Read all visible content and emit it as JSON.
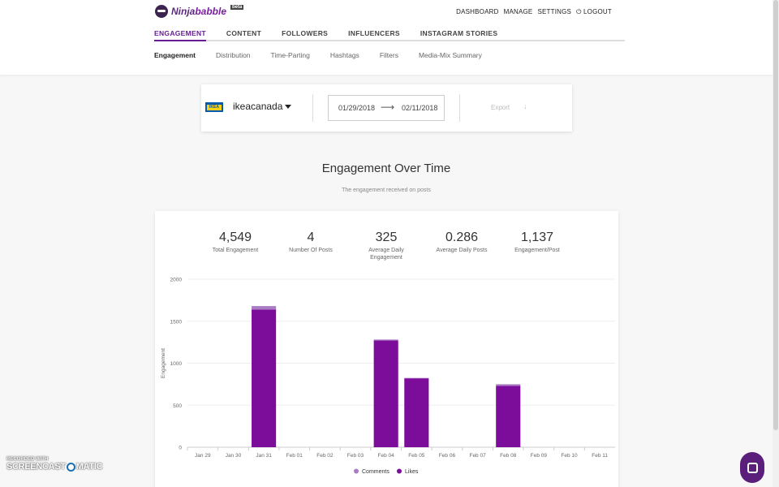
{
  "app": {
    "logo_text": "Ninja",
    "logo_text_bold": "babble",
    "logo_badge": "beta"
  },
  "topnav": [
    "DASHBOARD",
    "MANAGE",
    "SETTINGS",
    "⏻ LOGOUT"
  ],
  "main_tabs": [
    "ENGAGEMENT",
    "CONTENT",
    "FOLLOWERS",
    "INFLUENCERS",
    "INSTAGRAM STORIES"
  ],
  "sub_tabs": [
    "Engagement",
    "Distribution",
    "Time-Parting",
    "Hashtags",
    "Filters",
    "Media-Mix Summary"
  ],
  "filter": {
    "brand_logo": "IKEA",
    "account": "ikeacanada",
    "date_from": "01/29/2018",
    "date_to": "02/11/2018",
    "export_label": "Export"
  },
  "section": {
    "title": "Engagement Over Time",
    "subtitle": "The engagement received on posts"
  },
  "stats": [
    {
      "value": "4,549",
      "label": "Total Engagement"
    },
    {
      "value": "4",
      "label": "Number Of Posts"
    },
    {
      "value": "325",
      "label": "Average Daily Engagement"
    },
    {
      "value": "0.286",
      "label": "Average Daily Posts"
    },
    {
      "value": "1,137",
      "label": "Engagement/Post"
    }
  ],
  "chart_data": {
    "type": "bar",
    "stacked": true,
    "title": "",
    "xlabel": "",
    "ylabel": "Engagement",
    "ylim": [
      0,
      2000
    ],
    "yticks": [
      0,
      500,
      1000,
      1500,
      2000
    ],
    "grid": true,
    "legend": "bottom-center",
    "categories": [
      "Jan 29",
      "Jan 30",
      "Jan 31",
      "Feb 01",
      "Feb 02",
      "Feb 03",
      "Feb 04",
      "Feb 05",
      "Feb 06",
      "Feb 07",
      "Feb 08",
      "Feb 09",
      "Feb 10",
      "Feb 11"
    ],
    "series": [
      {
        "name": "Likes",
        "color": "#7b0d9a",
        "values": [
          0,
          0,
          1640,
          0,
          0,
          0,
          1270,
          820,
          0,
          0,
          730,
          0,
          0,
          0
        ]
      },
      {
        "name": "Comments",
        "color": "#a97cc4",
        "values": [
          0,
          0,
          40,
          0,
          0,
          0,
          12,
          5,
          0,
          0,
          20,
          0,
          0,
          0
        ]
      }
    ],
    "legend_order": [
      "Comments",
      "Likes"
    ]
  },
  "watermark": {
    "recorded_with": "RECORDED WITH",
    "brand_left": "SCREENCAST",
    "brand_right": "MATIC"
  },
  "colors": {
    "accent": "#6a1b9a"
  }
}
